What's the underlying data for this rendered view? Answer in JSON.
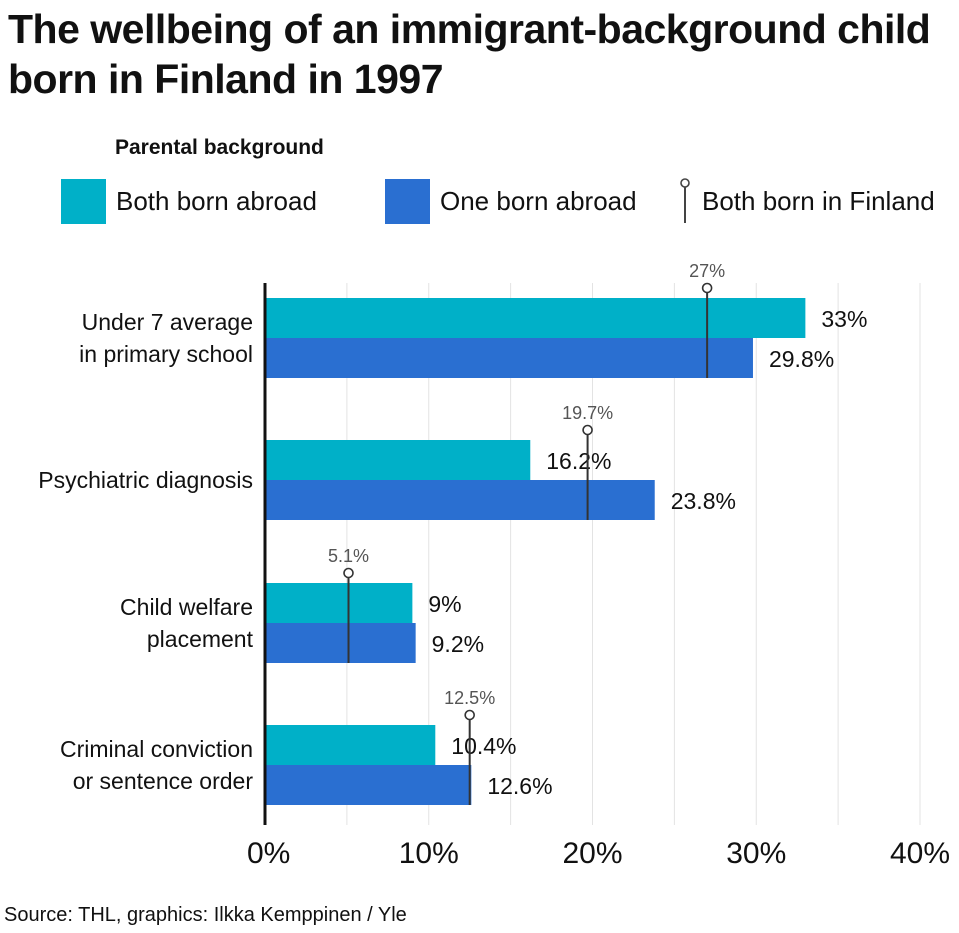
{
  "title": "The wellbeing of an immigrant-background child born in Finland in 1997",
  "legend": {
    "title": "Parental background",
    "items": [
      {
        "label": "Both born abroad",
        "color": "#00b0c8",
        "kind": "bar"
      },
      {
        "label": "One born abroad",
        "color": "#2a6fd1",
        "kind": "bar"
      },
      {
        "label": "Both born in Finland",
        "color": "#444444",
        "kind": "marker"
      }
    ]
  },
  "source": "Source: THL, graphics: Ilkka Kemppinen / Yle",
  "chart_data": {
    "type": "bar",
    "orientation": "horizontal",
    "categories": [
      [
        "Under 7 average",
        "in primary school"
      ],
      [
        "Psychiatric diagnosis"
      ],
      [
        "Child welfare",
        "placement"
      ],
      [
        "Criminal conviction",
        "or sentence order"
      ]
    ],
    "series": [
      {
        "name": "Both born abroad",
        "color": "#00b0c8",
        "values": [
          33,
          16.2,
          9,
          10.4
        ],
        "labels": [
          "33%",
          "16.2%",
          "9%",
          "10.4%"
        ]
      },
      {
        "name": "One born abroad",
        "color": "#2a6fd1",
        "values": [
          29.8,
          23.8,
          9.2,
          12.6
        ],
        "labels": [
          "29.8%",
          "23.8%",
          "9.2%",
          "12.6%"
        ]
      }
    ],
    "reference": {
      "name": "Both born in Finland",
      "values": [
        27,
        19.7,
        5.1,
        12.5
      ],
      "labels": [
        "27%",
        "19.7%",
        "5.1%",
        "12.5%"
      ]
    },
    "xlim": [
      0,
      40
    ],
    "xticks": [
      0,
      10,
      20,
      30,
      40
    ],
    "xtick_labels": [
      "0%",
      "10%",
      "20%",
      "30%",
      "40%"
    ],
    "grid": true
  }
}
